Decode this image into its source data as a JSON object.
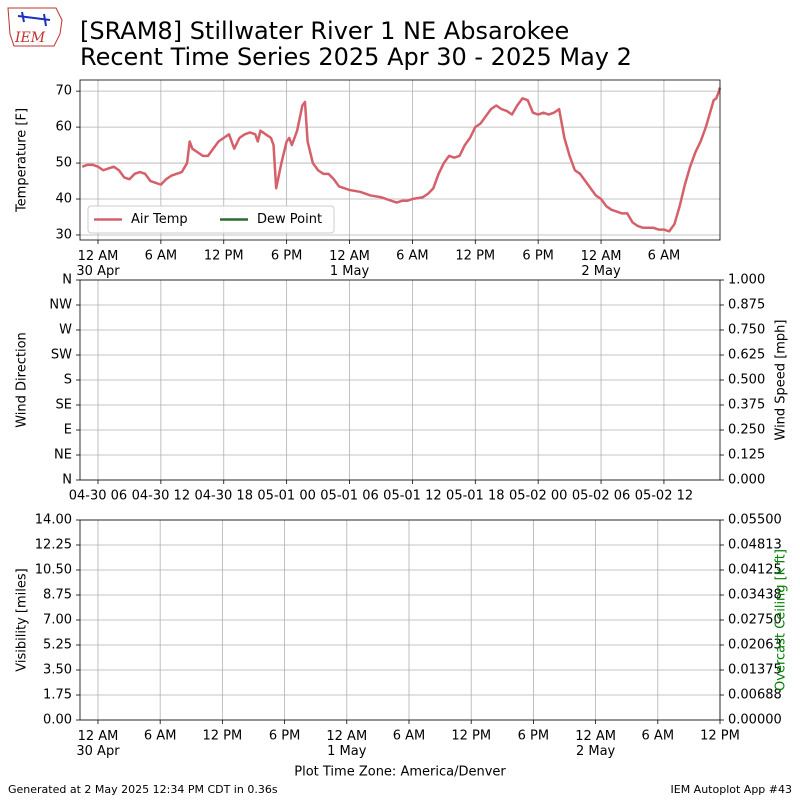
{
  "title": [
    "[SRAM8] Stillwater River 1 NE Absarokee",
    "Recent Time Series 2025 Apr 30 - 2025 May 2"
  ],
  "logo_text": "IEM",
  "footer_left": "Generated at 2 May 2025 12:34 PM CDT in 0.36s",
  "footer_right": "IEM Autoplot App #43",
  "chart_data": [
    {
      "type": "line",
      "ylabel": "Temperature [F]",
      "xlim": [
        "2025-04-29 22:17",
        "2025-05-02 11:21"
      ],
      "xticks": [
        {
          "value": "2025-04-30 00:00",
          "label": "12 AM\n30 Apr"
        },
        {
          "value": "2025-04-30 06:00",
          "label": "6 AM"
        },
        {
          "value": "2025-04-30 12:00",
          "label": "12 PM"
        },
        {
          "value": "2025-04-30 18:00",
          "label": "6 PM"
        },
        {
          "value": "2025-05-01 00:00",
          "label": "12 AM\n1 May"
        },
        {
          "value": "2025-05-01 06:00",
          "label": "6 AM"
        },
        {
          "value": "2025-05-01 12:00",
          "label": "12 PM"
        },
        {
          "value": "2025-05-01 18:00",
          "label": "6 PM"
        },
        {
          "value": "2025-05-02 00:00",
          "label": "12 AM\n2 May"
        },
        {
          "value": "2025-05-02 06:00",
          "label": "6 AM"
        }
      ],
      "ylim": [
        28.6,
        73.1
      ],
      "yticks": [
        30,
        40,
        50,
        60,
        70
      ],
      "grid": true,
      "legend": "lower left",
      "x": [
        "2025-04-29 22:30",
        "2025-04-29 23:00",
        "2025-04-29 23:30",
        "2025-04-30 00:00",
        "2025-04-30 00:30",
        "2025-04-30 01:00",
        "2025-04-30 01:30",
        "2025-04-30 02:00",
        "2025-04-30 02:30",
        "2025-04-30 03:00",
        "2025-04-30 03:30",
        "2025-04-30 04:00",
        "2025-04-30 04:30",
        "2025-04-30 05:00",
        "2025-04-30 05:30",
        "2025-04-30 06:00",
        "2025-04-30 06:30",
        "2025-04-30 07:00",
        "2025-04-30 07:30",
        "2025-04-30 08:00",
        "2025-04-30 08:30",
        "2025-04-30 08:45",
        "2025-04-30 09:00",
        "2025-04-30 09:30",
        "2025-04-30 10:00",
        "2025-04-30 10:30",
        "2025-04-30 11:00",
        "2025-04-30 11:30",
        "2025-04-30 12:00",
        "2025-04-30 12:30",
        "2025-04-30 13:00",
        "2025-04-30 13:30",
        "2025-04-30 14:00",
        "2025-04-30 14:30",
        "2025-04-30 15:00",
        "2025-04-30 15:15",
        "2025-04-30 15:30",
        "2025-04-30 16:00",
        "2025-04-30 16:30",
        "2025-04-30 16:45",
        "2025-04-30 17:00",
        "2025-04-30 17:30",
        "2025-04-30 18:00",
        "2025-04-30 18:15",
        "2025-04-30 18:30",
        "2025-04-30 19:00",
        "2025-04-30 19:30",
        "2025-04-30 19:45",
        "2025-04-30 20:00",
        "2025-04-30 20:30",
        "2025-04-30 21:00",
        "2025-04-30 21:30",
        "2025-04-30 22:00",
        "2025-04-30 22:30",
        "2025-04-30 23:00",
        "2025-04-30 23:30",
        "2025-05-01 00:00",
        "2025-05-01 01:00",
        "2025-05-01 02:00",
        "2025-05-01 03:00",
        "2025-05-01 04:00",
        "2025-05-01 04:30",
        "2025-05-01 05:00",
        "2025-05-01 05:30",
        "2025-05-01 06:00",
        "2025-05-01 07:00",
        "2025-05-01 07:30",
        "2025-05-01 08:00",
        "2025-05-01 08:30",
        "2025-05-01 09:00",
        "2025-05-01 09:30",
        "2025-05-01 10:00",
        "2025-05-01 10:30",
        "2025-05-01 11:00",
        "2025-05-01 11:30",
        "2025-05-01 12:00",
        "2025-05-01 12:30",
        "2025-05-01 13:00",
        "2025-05-01 13:30",
        "2025-05-01 14:00",
        "2025-05-01 14:30",
        "2025-05-01 15:00",
        "2025-05-01 15:30",
        "2025-05-01 16:00",
        "2025-05-01 16:30",
        "2025-05-01 17:00",
        "2025-05-01 17:30",
        "2025-05-01 18:00",
        "2025-05-01 18:30",
        "2025-05-01 19:00",
        "2025-05-01 19:30",
        "2025-05-01 20:00",
        "2025-05-01 20:30",
        "2025-05-01 21:00",
        "2025-05-01 21:30",
        "2025-05-01 22:00",
        "2025-05-01 22:30",
        "2025-05-01 23:00",
        "2025-05-01 23:30",
        "2025-05-02 00:00",
        "2025-05-02 00:30",
        "2025-05-02 01:00",
        "2025-05-02 01:30",
        "2025-05-02 02:00",
        "2025-05-02 02:30",
        "2025-05-02 03:00",
        "2025-05-02 03:30",
        "2025-05-02 04:00",
        "2025-05-02 05:00",
        "2025-05-02 05:30",
        "2025-05-02 06:00",
        "2025-05-02 06:30",
        "2025-05-02 07:00",
        "2025-05-02 07:30",
        "2025-05-02 08:00",
        "2025-05-02 08:30",
        "2025-05-02 09:00",
        "2025-05-02 09:30",
        "2025-05-02 10:00",
        "2025-05-02 10:30",
        "2025-05-02 10:45",
        "2025-05-02 11:00",
        "2025-05-02 11:15",
        "2025-05-02 11:20"
      ],
      "series": [
        {
          "name": "Air Temp",
          "color": "#d6606a",
          "values": [
            49,
            49.5,
            49.5,
            49,
            48,
            48.5,
            49,
            48,
            46,
            45.5,
            47,
            47.5,
            47,
            45,
            44.5,
            44,
            45.5,
            46.5,
            47,
            47.5,
            50,
            56,
            54,
            53,
            52,
            52,
            54,
            56,
            57,
            58,
            54,
            57,
            58,
            58.5,
            58,
            56,
            59,
            58,
            57,
            55,
            43,
            50,
            56,
            57,
            55,
            59,
            66,
            67,
            56,
            50,
            48,
            47,
            47,
            45.5,
            43.5,
            43,
            42.5,
            42,
            41,
            40.5,
            39.5,
            39,
            39.5,
            39.5,
            40,
            40.5,
            41.5,
            43,
            47,
            50,
            52,
            51.5,
            52,
            55,
            57,
            60,
            61,
            63,
            65,
            66,
            65,
            64.5,
            63.5,
            66,
            68,
            67.5,
            64,
            63.5,
            64,
            63.5,
            64,
            65,
            57,
            52,
            48,
            47,
            45,
            43,
            41,
            40,
            38,
            37,
            36.5,
            36,
            36,
            33.5,
            32.5,
            32,
            32,
            31.5,
            31.5,
            31,
            33,
            38,
            44,
            49,
            53,
            56,
            60,
            65,
            67.5,
            68,
            70,
            71
          ]
        },
        {
          "name": "Dew Point",
          "color": "#2e6b30",
          "values": [
            null,
            null,
            null,
            null,
            null,
            null,
            null,
            null,
            null,
            null,
            null,
            null,
            null,
            null,
            null,
            null,
            null,
            null,
            null,
            null,
            null,
            null,
            null,
            null,
            null,
            null,
            null,
            null,
            null,
            null,
            null,
            null,
            null,
            null,
            null,
            null,
            null,
            null,
            null,
            null,
            null,
            null,
            null,
            null,
            null,
            null,
            null,
            null,
            null,
            null,
            null,
            null,
            null,
            null,
            null,
            null,
            null,
            null,
            null,
            null,
            null,
            null,
            null,
            null,
            null,
            null,
            null,
            null,
            null,
            null,
            null,
            null,
            null,
            null,
            null,
            null,
            null,
            null,
            null,
            null,
            null,
            null,
            null,
            null,
            null,
            null,
            null,
            null,
            null,
            null,
            null,
            null,
            null,
            null,
            null,
            null,
            null,
            null,
            null,
            null,
            null,
            null,
            null,
            null,
            null,
            null,
            null,
            null,
            null,
            null,
            null,
            null,
            null,
            null,
            null,
            null,
            null,
            null,
            null,
            null,
            null,
            null,
            null,
            null
          ]
        }
      ]
    },
    {
      "type": "line",
      "ylabel": "Wind Direction",
      "y2label": "Wind Speed [mph]",
      "xlim": [
        "2025-04-30 04:17",
        "2025-05-02 17:21"
      ],
      "xticks": [
        {
          "value": "2025-04-30 06:00",
          "label": "04-30 06"
        },
        {
          "value": "2025-04-30 12:00",
          "label": "04-30 12"
        },
        {
          "value": "2025-04-30 18:00",
          "label": "04-30 18"
        },
        {
          "value": "2025-05-01 00:00",
          "label": "05-01 00"
        },
        {
          "value": "2025-05-01 06:00",
          "label": "05-01 06"
        },
        {
          "value": "2025-05-01 12:00",
          "label": "05-01 12"
        },
        {
          "value": "2025-05-01 18:00",
          "label": "05-01 18"
        },
        {
          "value": "2025-05-02 00:00",
          "label": "05-02 00"
        },
        {
          "value": "2025-05-02 06:00",
          "label": "05-02 06"
        },
        {
          "value": "2025-05-02 12:00",
          "label": "05-02 12"
        }
      ],
      "ylim": [
        0,
        360
      ],
      "yticks": [
        {
          "value": 0,
          "label": "N"
        },
        {
          "value": 45,
          "label": "NE"
        },
        {
          "value": 90,
          "label": "E"
        },
        {
          "value": 135,
          "label": "SE"
        },
        {
          "value": 180,
          "label": "S"
        },
        {
          "value": 225,
          "label": "SW"
        },
        {
          "value": 270,
          "label": "W"
        },
        {
          "value": 315,
          "label": "NW"
        },
        {
          "value": 360,
          "label": "N"
        }
      ],
      "y2lim": [
        0,
        1
      ],
      "y2ticks": [
        {
          "value": 0,
          "label": "0.000"
        },
        {
          "value": 0.125,
          "label": "0.125"
        },
        {
          "value": 0.25,
          "label": "0.250"
        },
        {
          "value": 0.375,
          "label": "0.375"
        },
        {
          "value": 0.5,
          "label": "0.500"
        },
        {
          "value": 0.625,
          "label": "0.625"
        },
        {
          "value": 0.75,
          "label": "0.750"
        },
        {
          "value": 0.875,
          "label": "0.875"
        },
        {
          "value": 1,
          "label": "1.000"
        }
      ],
      "grid": true,
      "series": []
    },
    {
      "type": "line",
      "ylabel": "Visibility [miles]",
      "y2label": "Overcast Ceiling [k ft]",
      "y2label_color": "#008000",
      "xlabel": "Plot Time Zone: America/Denver",
      "xlim": [
        "2025-04-29 22:16",
        "2025-05-02 12:00"
      ],
      "xticks": [
        {
          "value": "2025-04-30 00:00",
          "label": "12 AM\n30 Apr"
        },
        {
          "value": "2025-04-30 06:00",
          "label": "6 AM"
        },
        {
          "value": "2025-04-30 12:00",
          "label": "12 PM"
        },
        {
          "value": "2025-04-30 18:00",
          "label": "6 PM"
        },
        {
          "value": "2025-05-01 00:00",
          "label": "12 AM\n1 May"
        },
        {
          "value": "2025-05-01 06:00",
          "label": "6 AM"
        },
        {
          "value": "2025-05-01 12:00",
          "label": "12 PM"
        },
        {
          "value": "2025-05-01 18:00",
          "label": "6 PM"
        },
        {
          "value": "2025-05-02 00:00",
          "label": "12 AM\n2 May"
        },
        {
          "value": "2025-05-02 06:00",
          "label": "6 AM"
        },
        {
          "value": "2025-05-02 12:00",
          "label": "12 PM"
        }
      ],
      "ylim": [
        0,
        14
      ],
      "yticks": [
        {
          "value": 0,
          "label": "0.00"
        },
        {
          "value": 1.75,
          "label": "1.75"
        },
        {
          "value": 3.5,
          "label": "3.50"
        },
        {
          "value": 5.25,
          "label": "5.25"
        },
        {
          "value": 7,
          "label": "7.00"
        },
        {
          "value": 8.75,
          "label": "8.75"
        },
        {
          "value": 10.5,
          "label": "10.50"
        },
        {
          "value": 12.25,
          "label": "12.25"
        },
        {
          "value": 14,
          "label": "14.00"
        }
      ],
      "y2lim": [
        0,
        0.055
      ],
      "y2ticks": [
        {
          "value": 0,
          "label": "0.00000"
        },
        {
          "value": 0.006875,
          "label": "0.00688"
        },
        {
          "value": 0.01375,
          "label": "0.01375"
        },
        {
          "value": 0.020625,
          "label": "0.02063"
        },
        {
          "value": 0.0275,
          "label": "0.02750"
        },
        {
          "value": 0.034375,
          "label": "0.03438"
        },
        {
          "value": 0.04125,
          "label": "0.04125"
        },
        {
          "value": 0.048125,
          "label": "0.04813"
        },
        {
          "value": 0.055,
          "label": "0.05500"
        }
      ],
      "grid": true,
      "series": []
    }
  ]
}
